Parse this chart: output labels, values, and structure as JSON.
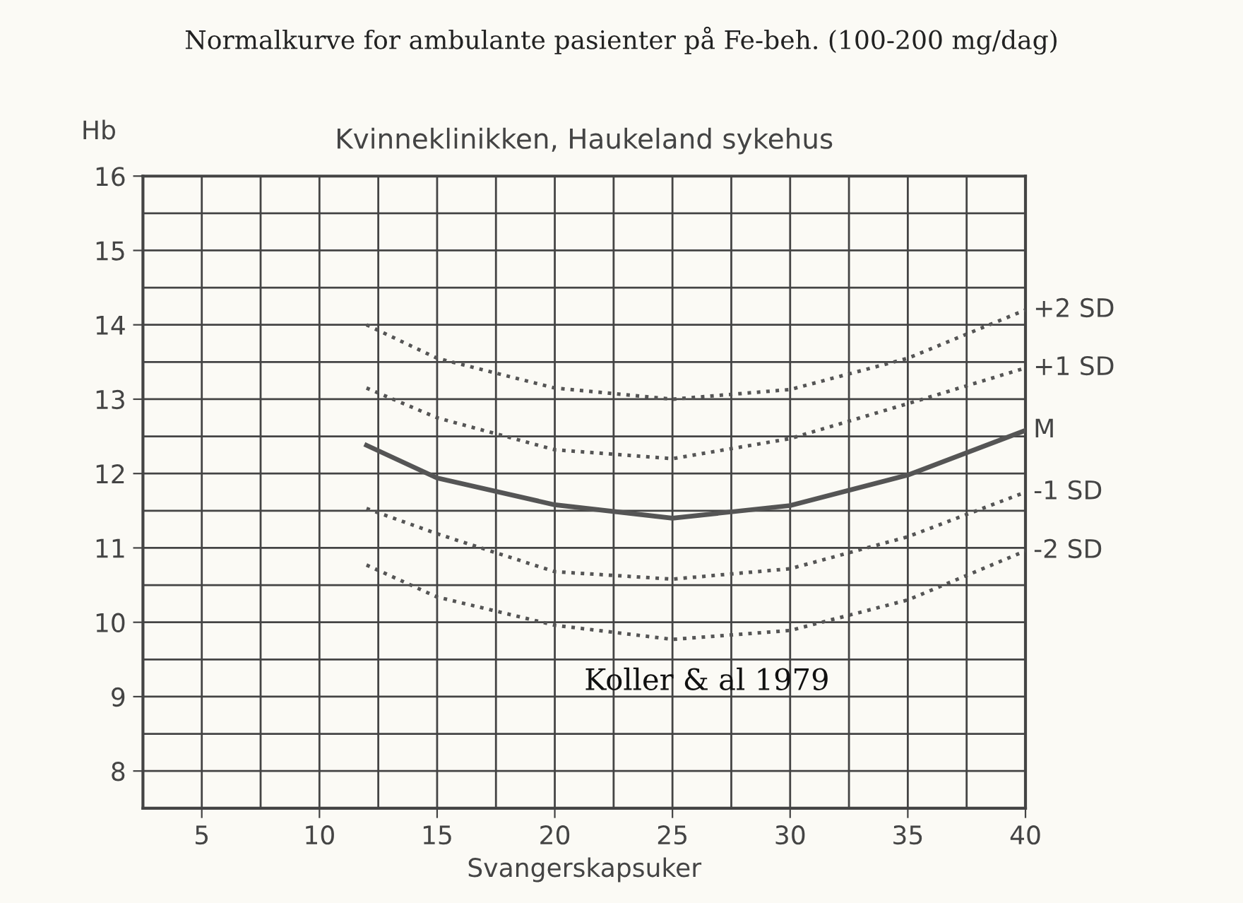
{
  "chart_data": {
    "type": "line",
    "title": "Normalkurve for ambulante pasienter på Fe-beh. (100-200 mg/dag)",
    "subtitle": "Kvinneklinikken, Haukeland sykehus",
    "xlabel": "Svangerskapsuker",
    "ylabel": "Hb",
    "x": [
      12,
      15,
      20,
      25,
      30,
      35,
      40
    ],
    "series": [
      {
        "name": "+2 SD",
        "color": "#555555",
        "line_style": "dotted",
        "values": [
          14.0,
          13.55,
          13.15,
          13.0,
          13.13,
          13.55,
          14.2
        ]
      },
      {
        "name": "+1 SD",
        "color": "#555555",
        "line_style": "dotted",
        "values": [
          13.15,
          12.75,
          12.32,
          12.2,
          12.47,
          12.94,
          13.42
        ]
      },
      {
        "name": "M",
        "color": "#555555",
        "line_style": "solid",
        "values": [
          12.38,
          11.94,
          11.58,
          11.4,
          11.57,
          11.98,
          12.58
        ]
      },
      {
        "name": "-1 SD",
        "color": "#555555",
        "line_style": "dotted",
        "values": [
          11.53,
          11.19,
          10.68,
          10.58,
          10.72,
          11.15,
          11.75
        ]
      },
      {
        "name": "-2 SD",
        "color": "#555555",
        "line_style": "dotted",
        "values": [
          10.77,
          10.34,
          9.96,
          9.77,
          9.89,
          10.3,
          10.96
        ]
      }
    ],
    "xlim": [
      2.5,
      40
    ],
    "ylim": [
      7.5,
      16
    ],
    "xticks": [
      5,
      10,
      15,
      20,
      25,
      30,
      35,
      40
    ],
    "yticks": [
      8,
      9,
      10,
      11,
      12,
      13,
      14,
      15,
      16
    ],
    "grid": true,
    "legend": false,
    "marker": "none",
    "annotations": [
      "Koller & al 1979"
    ]
  }
}
